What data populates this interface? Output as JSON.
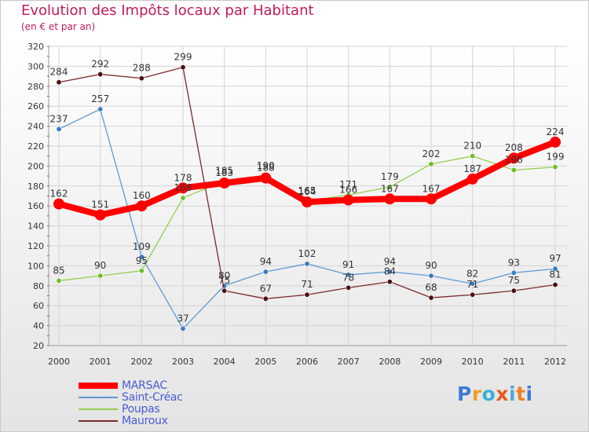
{
  "header": {
    "title": "Evolution des Impôts locaux par Habitant",
    "subtitle": "(en € et par an)"
  },
  "logo": {
    "text": "Proxiti"
  },
  "chart_data": {
    "type": "line",
    "title": "Evolution des Impôts locaux par Habitant",
    "subtitle": "(en € et par an)",
    "xlabel": "",
    "ylabel": "",
    "ylim": [
      20,
      320
    ],
    "y_ticks": [
      20,
      40,
      60,
      80,
      100,
      120,
      140,
      160,
      180,
      200,
      220,
      240,
      260,
      280,
      300,
      320
    ],
    "grid": true,
    "legend_position": "bottom-left",
    "categories": [
      "2000",
      "2001",
      "2002",
      "2003",
      "2004",
      "2005",
      "2006",
      "2007",
      "2008",
      "2009",
      "2010",
      "2011",
      "2012"
    ],
    "series": [
      {
        "name": "MARSAC",
        "color": "#ff0000",
        "values": [
          162,
          151,
          160,
          178,
          183,
          188,
          164,
          166,
          167,
          167,
          187,
          208,
          224
        ],
        "labels": [
          "162",
          "151",
          "160",
          "178",
          "183",
          "188",
          "164",
          "166",
          "167",
          "167",
          "187",
          "208",
          "224"
        ]
      },
      {
        "name": "Saint-Créac",
        "color": "#5b9bd5",
        "values": [
          237,
          257,
          109,
          37,
          80,
          94,
          102,
          91,
          94,
          90,
          82,
          93,
          97
        ],
        "labels": [
          "237",
          "257",
          "109",
          "37",
          "80",
          "94",
          "102",
          "91",
          "94",
          "90",
          "82",
          "93",
          "97"
        ]
      },
      {
        "name": "Poupas",
        "color": "#92d050",
        "values": [
          85,
          90,
          95,
          168,
          185,
          190,
          165,
          171,
          179,
          202,
          210,
          196,
          199
        ],
        "labels": [
          "85",
          "90",
          "95",
          "168",
          "185",
          "190",
          "165",
          "171",
          "179",
          "202",
          "210",
          "196",
          "199"
        ]
      },
      {
        "name": "Mauroux",
        "color": "#7b2a2a",
        "values": [
          284,
          292,
          288,
          299,
          75,
          67,
          71,
          78,
          84,
          68,
          71,
          75,
          81
        ],
        "labels": [
          "284",
          "292",
          "288",
          "299",
          "75",
          "67",
          "71",
          "78",
          "84",
          "68",
          "71",
          "75",
          "81"
        ]
      }
    ]
  }
}
